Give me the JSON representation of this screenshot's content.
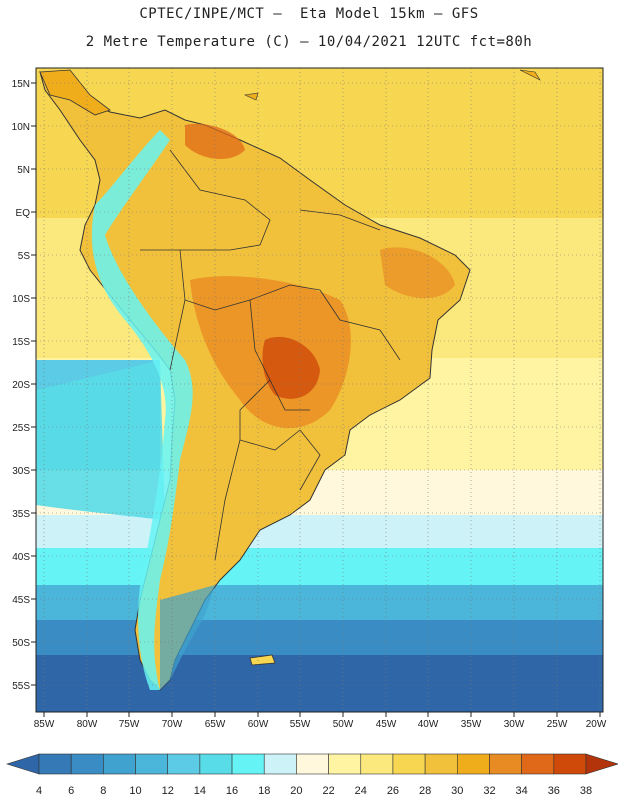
{
  "header": {
    "line1": "CPTEC/INPE/MCT –  Eta Model 15km – GFS",
    "line2": "2 Metre Temperature (C) – 10/04/2021 12UTC fct=80h"
  },
  "map": {
    "lat_labels": [
      "15N",
      "10N",
      "5N",
      "EQ",
      "5S",
      "10S",
      "15S",
      "20S",
      "25S",
      "30S",
      "35S",
      "40S",
      "45S",
      "50S",
      "55S"
    ],
    "lon_labels": [
      "85W",
      "80W",
      "75W",
      "70W",
      "65W",
      "60W",
      "55W",
      "50W",
      "45W",
      "40W",
      "35W",
      "30W",
      "25W",
      "20W"
    ]
  },
  "colorbar": {
    "values": [
      "4",
      "6",
      "8",
      "10",
      "12",
      "14",
      "16",
      "18",
      "20",
      "22",
      "24",
      "26",
      "28",
      "30",
      "32",
      "34",
      "36",
      "38"
    ],
    "colors": [
      "#2f66a8",
      "#3579b6",
      "#3a8cc4",
      "#40a2cf",
      "#4bb6da",
      "#5ccbe5",
      "#58dce7",
      "#66f3f5",
      "#cdf3f8",
      "#fff8dd",
      "#fff4a2",
      "#fbe97d",
      "#f7d752",
      "#f2c13b",
      "#efad1b",
      "#e98b23",
      "#e06919",
      "#cf4a09",
      "#b3330b"
    ]
  }
}
